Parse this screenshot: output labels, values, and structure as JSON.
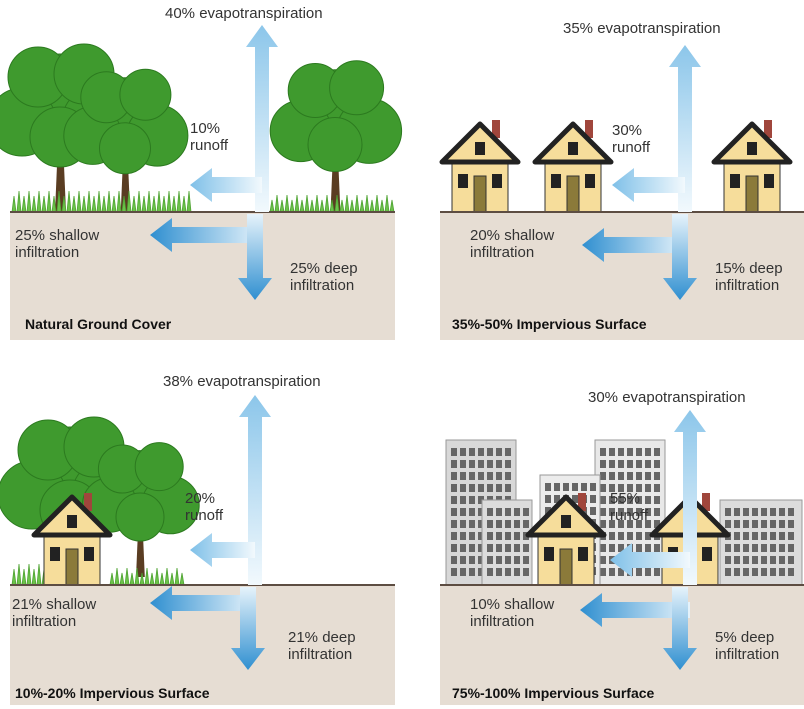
{
  "panels": [
    {
      "title": "Natural Ground Cover",
      "evapotranspiration": "40% evapotranspiration",
      "runoff": [
        "10%",
        "runoff"
      ],
      "shallow_infiltration": [
        "25% shallow",
        "infiltration"
      ],
      "deep_infiltration": [
        "25% deep",
        "infiltration"
      ]
    },
    {
      "title": "35%-50% Impervious Surface",
      "evapotranspiration": "35% evapotranspiration",
      "runoff": [
        "30%",
        "runoff"
      ],
      "shallow_infiltration": [
        "20% shallow",
        "infiltration"
      ],
      "deep_infiltration": [
        "15% deep",
        "infiltration"
      ]
    },
    {
      "title": "10%-20% Impervious Surface",
      "evapotranspiration": "38% evapotranspiration",
      "runoff": [
        "20%",
        "runoff"
      ],
      "shallow_infiltration": [
        "21% shallow",
        "infiltration"
      ],
      "deep_infiltration": [
        "21% deep",
        "infiltration"
      ]
    },
    {
      "title": "75%-100% Impervious Surface",
      "evapotranspiration": "30% evapotranspiration",
      "runoff": [
        "55%",
        "runoff"
      ],
      "shallow_infiltration": [
        "10% shallow",
        "infiltration"
      ],
      "deep_infiltration": [
        "5% deep",
        "infiltration"
      ]
    }
  ]
}
